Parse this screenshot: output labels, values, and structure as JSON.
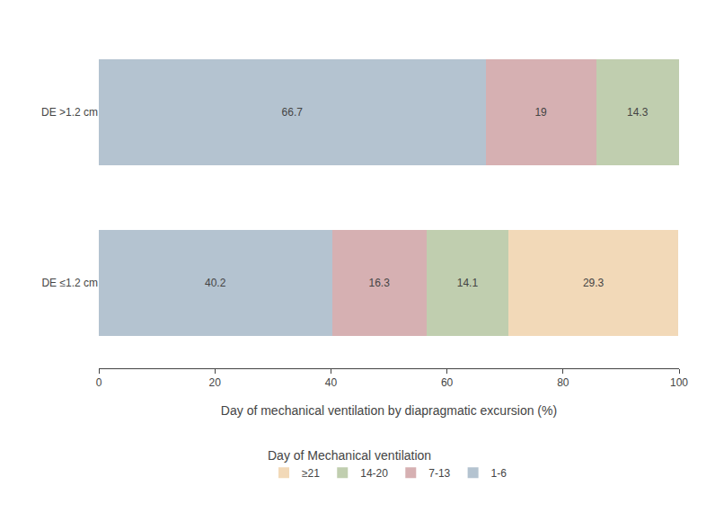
{
  "chart_data": {
    "type": "bar",
    "orientation": "horizontal",
    "stacked": true,
    "categories": [
      "DE >1.2 cm",
      "DE ≤1.2 cm"
    ],
    "series": [
      {
        "name": "1-6",
        "color": "#b4c3d0",
        "values": [
          66.7,
          40.2
        ]
      },
      {
        "name": "7-13",
        "color": "#d6b0b2",
        "values": [
          19.0,
          16.3
        ]
      },
      {
        "name": "14-20",
        "color": "#c0ceaf",
        "values": [
          14.3,
          14.1
        ]
      },
      {
        "name": "≥21",
        "color": "#f2d9b8",
        "values": [
          0.0,
          29.3
        ]
      }
    ],
    "xlabel": "Day of mechanical ventilation by diapragmatic excursion (%)",
    "legend_title": "Day of Mechanical ventilation",
    "xlim": [
      0,
      100
    ],
    "xticks": [
      0,
      20,
      40,
      60,
      80,
      100
    ],
    "grid": false,
    "data_labels": true,
    "legend": "bottom"
  }
}
